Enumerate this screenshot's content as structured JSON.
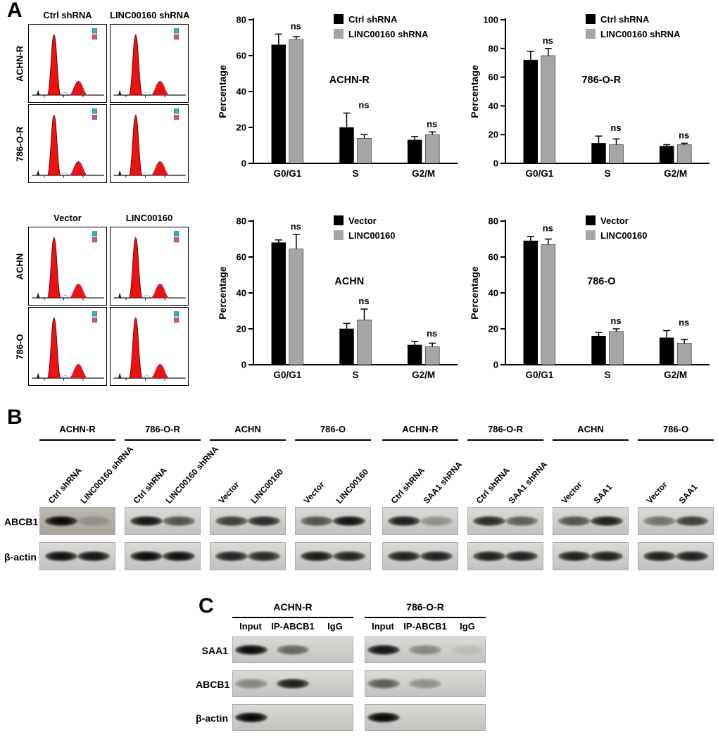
{
  "colors": {
    "bar_black": "#000000",
    "bar_gray": "#a6a6a6",
    "flow_peak": "#ee1111"
  },
  "panels": {
    "a": "A",
    "b": "B",
    "c": "C"
  },
  "flow_top": {
    "col_headers": [
      "Ctrl shRNA",
      "LINC00160 shRNA"
    ],
    "row_labels": [
      "ACHN-R",
      "786-O-R"
    ]
  },
  "flow_bottom": {
    "col_headers": [
      "Vector",
      "LINC00160"
    ],
    "row_labels": [
      "ACHN",
      "786-O"
    ]
  },
  "chart_data": [
    {
      "type": "bar",
      "title": "ACHN-R",
      "ylabel": "Percentage",
      "ylim": [
        0,
        80
      ],
      "yticks": [
        0,
        20,
        40,
        60,
        80
      ],
      "categories": [
        "G0/G1",
        "S",
        "G2/M"
      ],
      "series": [
        {
          "name": "Ctrl shRNA",
          "color": "#000000",
          "values": [
            66,
            20,
            13
          ],
          "errors": [
            6,
            8,
            2
          ]
        },
        {
          "name": "LINC00160 shRNA",
          "color": "#a6a6a6",
          "values": [
            69,
            14,
            16
          ],
          "errors": [
            1.5,
            2,
            1.5
          ]
        }
      ],
      "annotations": [
        "ns",
        "ns",
        "ns"
      ],
      "legend_position": "top-right",
      "grid": false
    },
    {
      "type": "bar",
      "title": "786-O-R",
      "ylabel": "Percentage",
      "ylim": [
        0,
        100
      ],
      "yticks": [
        0,
        20,
        40,
        60,
        80,
        100
      ],
      "categories": [
        "G0/G1",
        "S",
        "G2/M"
      ],
      "series": [
        {
          "name": "Ctrl shRNA",
          "color": "#000000",
          "values": [
            72,
            14,
            12
          ],
          "errors": [
            6,
            5,
            1
          ]
        },
        {
          "name": "LINC00160 shRNA",
          "color": "#a6a6a6",
          "values": [
            75,
            13,
            13
          ],
          "errors": [
            5,
            4,
            1
          ]
        }
      ],
      "annotations": [
        "ns",
        "ns",
        "ns"
      ],
      "legend_position": "top-right",
      "grid": false
    },
    {
      "type": "bar",
      "title": "ACHN",
      "ylabel": "Percentage",
      "ylim": [
        0,
        80
      ],
      "yticks": [
        0,
        20,
        40,
        60,
        80
      ],
      "categories": [
        "G0/G1",
        "S",
        "G2/M"
      ],
      "series": [
        {
          "name": "Vector",
          "color": "#000000",
          "values": [
            68,
            20,
            11
          ],
          "errors": [
            1.5,
            3,
            2
          ]
        },
        {
          "name": "LINC00160",
          "color": "#a6a6a6",
          "values": [
            64.5,
            25,
            10
          ],
          "errors": [
            8,
            6,
            2
          ]
        }
      ],
      "annotations": [
        "ns",
        "ns",
        "ns"
      ],
      "legend_position": "top-right",
      "grid": false
    },
    {
      "type": "bar",
      "title": "786-O",
      "ylabel": "Percentage",
      "ylim": [
        0,
        80
      ],
      "yticks": [
        0,
        20,
        40,
        60,
        80
      ],
      "categories": [
        "G0/G1",
        "S",
        "G2/M"
      ],
      "series": [
        {
          "name": "Vector",
          "color": "#000000",
          "values": [
            69,
            16,
            15
          ],
          "errors": [
            2.5,
            2,
            4
          ]
        },
        {
          "name": "LINC00160",
          "color": "#a6a6a6",
          "values": [
            67,
            18.5,
            12
          ],
          "errors": [
            3,
            1.5,
            2
          ]
        }
      ],
      "annotations": [
        "ns",
        "ns",
        "ns"
      ],
      "legend_position": "top-right",
      "grid": false
    }
  ],
  "blot_b": {
    "row_labels": [
      "ABCB1",
      "β-actin"
    ],
    "group_headers": [
      "ACHN-R",
      "786-O-R",
      "ACHN",
      "786-O",
      "ACHN-R",
      "786-O-R",
      "ACHN",
      "786-O"
    ],
    "lane_labels": [
      [
        "Ctrl shRNA",
        "LINC00160 shRNA"
      ],
      [
        "Ctrl shRNA",
        "LINC00160 shRNA"
      ],
      [
        "Vector",
        "LINC00160"
      ],
      [
        "Vector",
        "LINC00160"
      ],
      [
        "Ctrl shRNA",
        "SAA1 shRNA"
      ],
      [
        "Ctrl shRNA",
        "SAA1 shRNA"
      ],
      [
        "Vector",
        "SAA1"
      ],
      [
        "Vector",
        "SAA1"
      ]
    ],
    "abcb1_bands": [
      [
        0.95,
        0.18
      ],
      [
        0.9,
        0.6
      ],
      [
        0.7,
        0.8
      ],
      [
        0.6,
        0.9
      ],
      [
        0.85,
        0.3
      ],
      [
        0.8,
        0.55
      ],
      [
        0.6,
        0.85
      ],
      [
        0.45,
        0.7
      ]
    ],
    "actin_bands": [
      [
        0.92,
        0.9
      ],
      [
        0.95,
        0.92
      ],
      [
        0.82,
        0.8
      ],
      [
        0.88,
        0.82
      ],
      [
        0.85,
        0.85
      ],
      [
        0.85,
        0.85
      ],
      [
        0.85,
        0.85
      ],
      [
        0.85,
        0.85
      ]
    ]
  },
  "blot_c": {
    "group_headers": [
      "ACHN-R",
      "786-O-R"
    ],
    "lane_labels": [
      "Input",
      "IP-ABCB1",
      "IgG"
    ],
    "rows": [
      {
        "label": "SAA1",
        "bands": [
          [
            0.95,
            0.5,
            0
          ],
          [
            0.9,
            0.35,
            0.08
          ]
        ]
      },
      {
        "label": "ABCB1",
        "bands": [
          [
            0.35,
            0.85,
            0
          ],
          [
            0.55,
            0.3,
            0
          ]
        ]
      },
      {
        "label": "β-actin",
        "bands": [
          [
            0.97,
            0,
            0
          ],
          [
            0.97,
            0,
            0
          ]
        ]
      }
    ]
  }
}
